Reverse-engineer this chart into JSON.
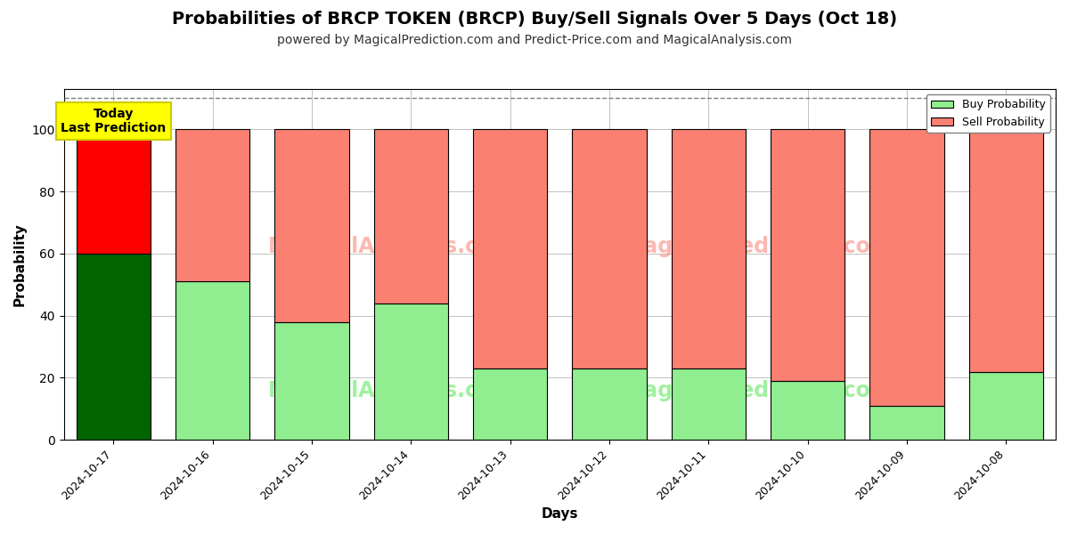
{
  "title": "Probabilities of BRCP TOKEN (BRCP) Buy/Sell Signals Over 5 Days (Oct 18)",
  "subtitle": "powered by MagicalPrediction.com and Predict-Price.com and MagicalAnalysis.com",
  "xlabel": "Days",
  "ylabel": "Probability",
  "categories": [
    "2024-10-17",
    "2024-10-16",
    "2024-10-15",
    "2024-10-14",
    "2024-10-13",
    "2024-10-12",
    "2024-10-11",
    "2024-10-10",
    "2024-10-09",
    "2024-10-08"
  ],
  "buy_values": [
    60,
    51,
    38,
    44,
    23,
    23,
    23,
    19,
    11,
    22
  ],
  "sell_values": [
    40,
    49,
    62,
    56,
    77,
    77,
    77,
    81,
    89,
    78
  ],
  "buy_colors_special": [
    "#006400",
    "#90EE90",
    "#90EE90",
    "#90EE90",
    "#90EE90",
    "#90EE90",
    "#90EE90",
    "#90EE90",
    "#90EE90",
    "#90EE90"
  ],
  "sell_colors_special": [
    "#FF0000",
    "#FA8072",
    "#FA8072",
    "#FA8072",
    "#FA8072",
    "#FA8072",
    "#FA8072",
    "#FA8072",
    "#FA8072",
    "#FA8072"
  ],
  "buy_color_legend": "#90EE90",
  "sell_color_legend": "#FA8072",
  "ylim": [
    0,
    113
  ],
  "dashed_line_y": 110,
  "annotation_text": "Today\nLast Prediction",
  "annotation_bg": "#FFFF00",
  "background_color": "#ffffff",
  "grid_color": "#aaaaaa",
  "title_fontsize": 14,
  "subtitle_fontsize": 10,
  "bar_edge_color": "#000000",
  "bar_width": 0.75
}
